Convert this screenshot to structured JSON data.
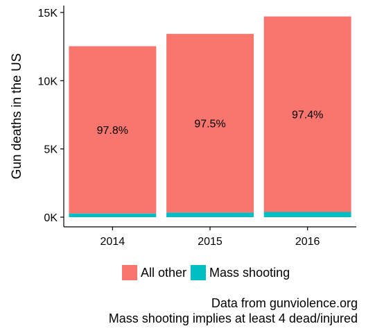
{
  "chart_data": {
    "type": "bar",
    "stacked": true,
    "categories": [
      "2014",
      "2015",
      "2016"
    ],
    "series": [
      {
        "name": "Mass shooting",
        "values": [
          270,
          335,
          380
        ],
        "color": "#00BFC4"
      },
      {
        "name": "All other",
        "values": [
          12260,
          13100,
          14330
        ],
        "color": "#F8766D"
      }
    ],
    "bar_labels": [
      "97.8%",
      "97.5%",
      "97.4%"
    ],
    "ylabel": "Gun deaths in the US",
    "xlabel": "",
    "ylim": [
      0,
      15000
    ],
    "yticks": [
      0,
      5000,
      10000,
      15000
    ],
    "ytick_labels": [
      "0K",
      "5K",
      "10K",
      "15K"
    ],
    "grid": false,
    "legend_position": "bottom"
  },
  "legend": {
    "items": [
      {
        "label": "All other",
        "color": "#F8766D"
      },
      {
        "label": "Mass shooting",
        "color": "#00BFC4"
      }
    ]
  },
  "caption": {
    "line1": "Data from gunviolence.org",
    "line2": "Mass shooting implies at least 4 dead/injured"
  }
}
